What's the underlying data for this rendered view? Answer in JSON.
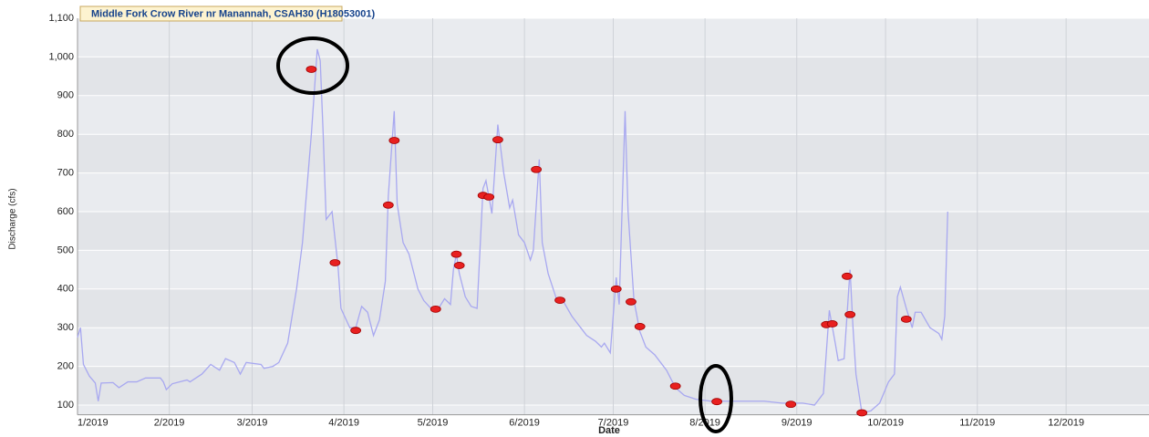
{
  "chart_data": {
    "type": "line",
    "title": "Middle Fork Crow River nr Manannah, CSAH30 (H18053001)",
    "xlabel": "Date",
    "ylabel": "Discharge (cfs)",
    "xlim": [
      0,
      362
    ],
    "ylim": [
      75,
      1100
    ],
    "xticks": [
      {
        "value": 0,
        "label": "1/2019"
      },
      {
        "value": 31,
        "label": "2/2019"
      },
      {
        "value": 59,
        "label": "3/2019"
      },
      {
        "value": 90,
        "label": "4/2019"
      },
      {
        "value": 120,
        "label": "5/2019"
      },
      {
        "value": 151,
        "label": "6/2019"
      },
      {
        "value": 181,
        "label": "7/2019"
      },
      {
        "value": 212,
        "label": "8/2019"
      },
      {
        "value": 243,
        "label": "9/2019"
      },
      {
        "value": 273,
        "label": "10/2019"
      },
      {
        "value": 304,
        "label": "11/2019"
      },
      {
        "value": 334,
        "label": "12/2019"
      }
    ],
    "yticks": [
      100,
      200,
      300,
      400,
      500,
      600,
      700,
      800,
      900,
      {
        "value": 1000,
        "label": "1,000"
      },
      {
        "value": 1100,
        "label": "1,100"
      }
    ],
    "grid": true,
    "series": [
      {
        "color": "#a8a8f0",
        "x": [
          0,
          1,
          2,
          4,
          6,
          7,
          8,
          12,
          14,
          17,
          20,
          23,
          28,
          29,
          30,
          32,
          37,
          38,
          42,
          45,
          48,
          50,
          53,
          55,
          57,
          62,
          63,
          66,
          68,
          71,
          74,
          76,
          79,
          81,
          82,
          83,
          84,
          85,
          86,
          88,
          89,
          92,
          94,
          96,
          98,
          100,
          102,
          104,
          105,
          107,
          108,
          110,
          112,
          115,
          117,
          120,
          122,
          124,
          126,
          127,
          128,
          129,
          131,
          133,
          135,
          137,
          138,
          140,
          142,
          144,
          146,
          147,
          149,
          151,
          153,
          154,
          156,
          157,
          159,
          162,
          164,
          167,
          170,
          172,
          174,
          175,
          177,
          178,
          180,
          182,
          183,
          185,
          186,
          188,
          190,
          192,
          195,
          199,
          202,
          205,
          209,
          214,
          220,
          226,
          232,
          238,
          245,
          249,
          252,
          254,
          256,
          257,
          259,
          261,
          262,
          263,
          265,
          268,
          271,
          274,
          276,
          277,
          278,
          280,
          282,
          283,
          285,
          288,
          291,
          292,
          293,
          294
        ],
        "values": [
          275,
          300,
          205,
          175,
          157,
          110,
          157,
          158,
          145,
          160,
          160,
          170,
          170,
          160,
          140,
          155,
          165,
          160,
          180,
          205,
          190,
          220,
          210,
          180,
          210,
          205,
          195,
          200,
          210,
          260,
          400,
          520,
          800,
          1020,
          990,
          800,
          580,
          590,
          600,
          460,
          350,
          300,
          300,
          355,
          340,
          280,
          320,
          420,
          640,
          860,
          620,
          520,
          490,
          400,
          370,
          345,
          350,
          375,
          360,
          450,
          490,
          440,
          380,
          355,
          350,
          660,
          680,
          595,
          825,
          700,
          610,
          630,
          540,
          520,
          475,
          500,
          735,
          520,
          440,
          370,
          370,
          330,
          300,
          280,
          270,
          265,
          250,
          260,
          235,
          430,
          360,
          860,
          600,
          370,
          290,
          250,
          230,
          190,
          145,
          125,
          115,
          110,
          110,
          110,
          110,
          105,
          105,
          100,
          130,
          345,
          260,
          215,
          220,
          450,
          300,
          180,
          80,
          85,
          105,
          160,
          180,
          380,
          405,
          350,
          300,
          340,
          340,
          300,
          285,
          270,
          330,
          600
        ]
      },
      {
        "color": "#e82020",
        "x": [
          79,
          87,
          94,
          105,
          107,
          121,
          128,
          129,
          137,
          139,
          142,
          155,
          163,
          182,
          187,
          190,
          202,
          216,
          241,
          253,
          255,
          260,
          261,
          265,
          280
        ],
        "values": [
          968,
          468,
          293,
          617,
          784,
          348,
          490,
          461,
          642,
          638,
          786,
          709,
          371,
          400,
          367,
          303,
          149,
          109,
          102,
          308,
          310,
          433,
          334,
          80,
          322
        ]
      }
    ]
  }
}
